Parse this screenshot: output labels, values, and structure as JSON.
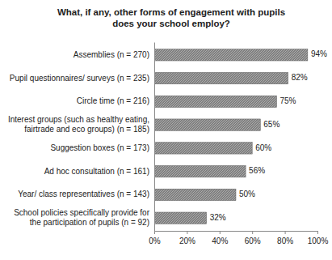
{
  "chart_data": {
    "type": "bar",
    "orientation": "horizontal",
    "title": "What, if any, other forms of engagement with pupils does your school employ?",
    "categories": [
      "Assemblies (n = 270)",
      "Pupil questionnaires/ surveys (n = 235)",
      "Circle time (n = 216)",
      "Interest groups (such as healthy eating, fairtrade and eco groups) (n = 185)",
      "Suggestion boxes (n = 173)",
      "Ad hoc consultation (n = 161)",
      "Year/ class representatives (n = 143)",
      "School policies specifically provide for the participation of pupils (n = 92)"
    ],
    "values": [
      94,
      82,
      75,
      65,
      60,
      56,
      50,
      32
    ],
    "value_labels": [
      "94%",
      "82%",
      "75%",
      "65%",
      "60%",
      "56%",
      "50%",
      "32%"
    ],
    "data_labels": true,
    "color": "#7f7f7f",
    "xlim": [
      0,
      100
    ],
    "xticks": [
      {
        "value": 0,
        "label": "0%"
      },
      {
        "value": 20,
        "label": "20%"
      },
      {
        "value": 40,
        "label": "40%"
      },
      {
        "value": 60,
        "label": "60%"
      },
      {
        "value": 80,
        "label": "80%"
      },
      {
        "value": 100,
        "label": "100%"
      }
    ],
    "grid": false
  }
}
